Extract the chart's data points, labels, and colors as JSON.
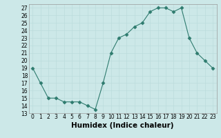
{
  "xlabel": "Humidex (Indice chaleur)",
  "x": [
    0,
    1,
    2,
    3,
    4,
    5,
    6,
    7,
    8,
    9,
    10,
    11,
    12,
    13,
    14,
    15,
    16,
    17,
    18,
    19,
    20,
    21,
    22,
    23
  ],
  "y": [
    19,
    17,
    15,
    15,
    14.5,
    14.5,
    14.5,
    14,
    13.5,
    17,
    21,
    23,
    23.5,
    24.5,
    25,
    26.5,
    27,
    27,
    26.5,
    27,
    23,
    21,
    20,
    19
  ],
  "ylim": [
    13,
    27.5
  ],
  "yticks": [
    13,
    14,
    15,
    16,
    17,
    18,
    19,
    20,
    21,
    22,
    23,
    24,
    25,
    26,
    27
  ],
  "line_color": "#2e7b6e",
  "marker": "D",
  "marker_size": 2.5,
  "bg_color": "#cce8e8",
  "grid_color": "#bbdcdc",
  "xlabel_fontsize": 7.5,
  "tick_fontsize": 5.5
}
